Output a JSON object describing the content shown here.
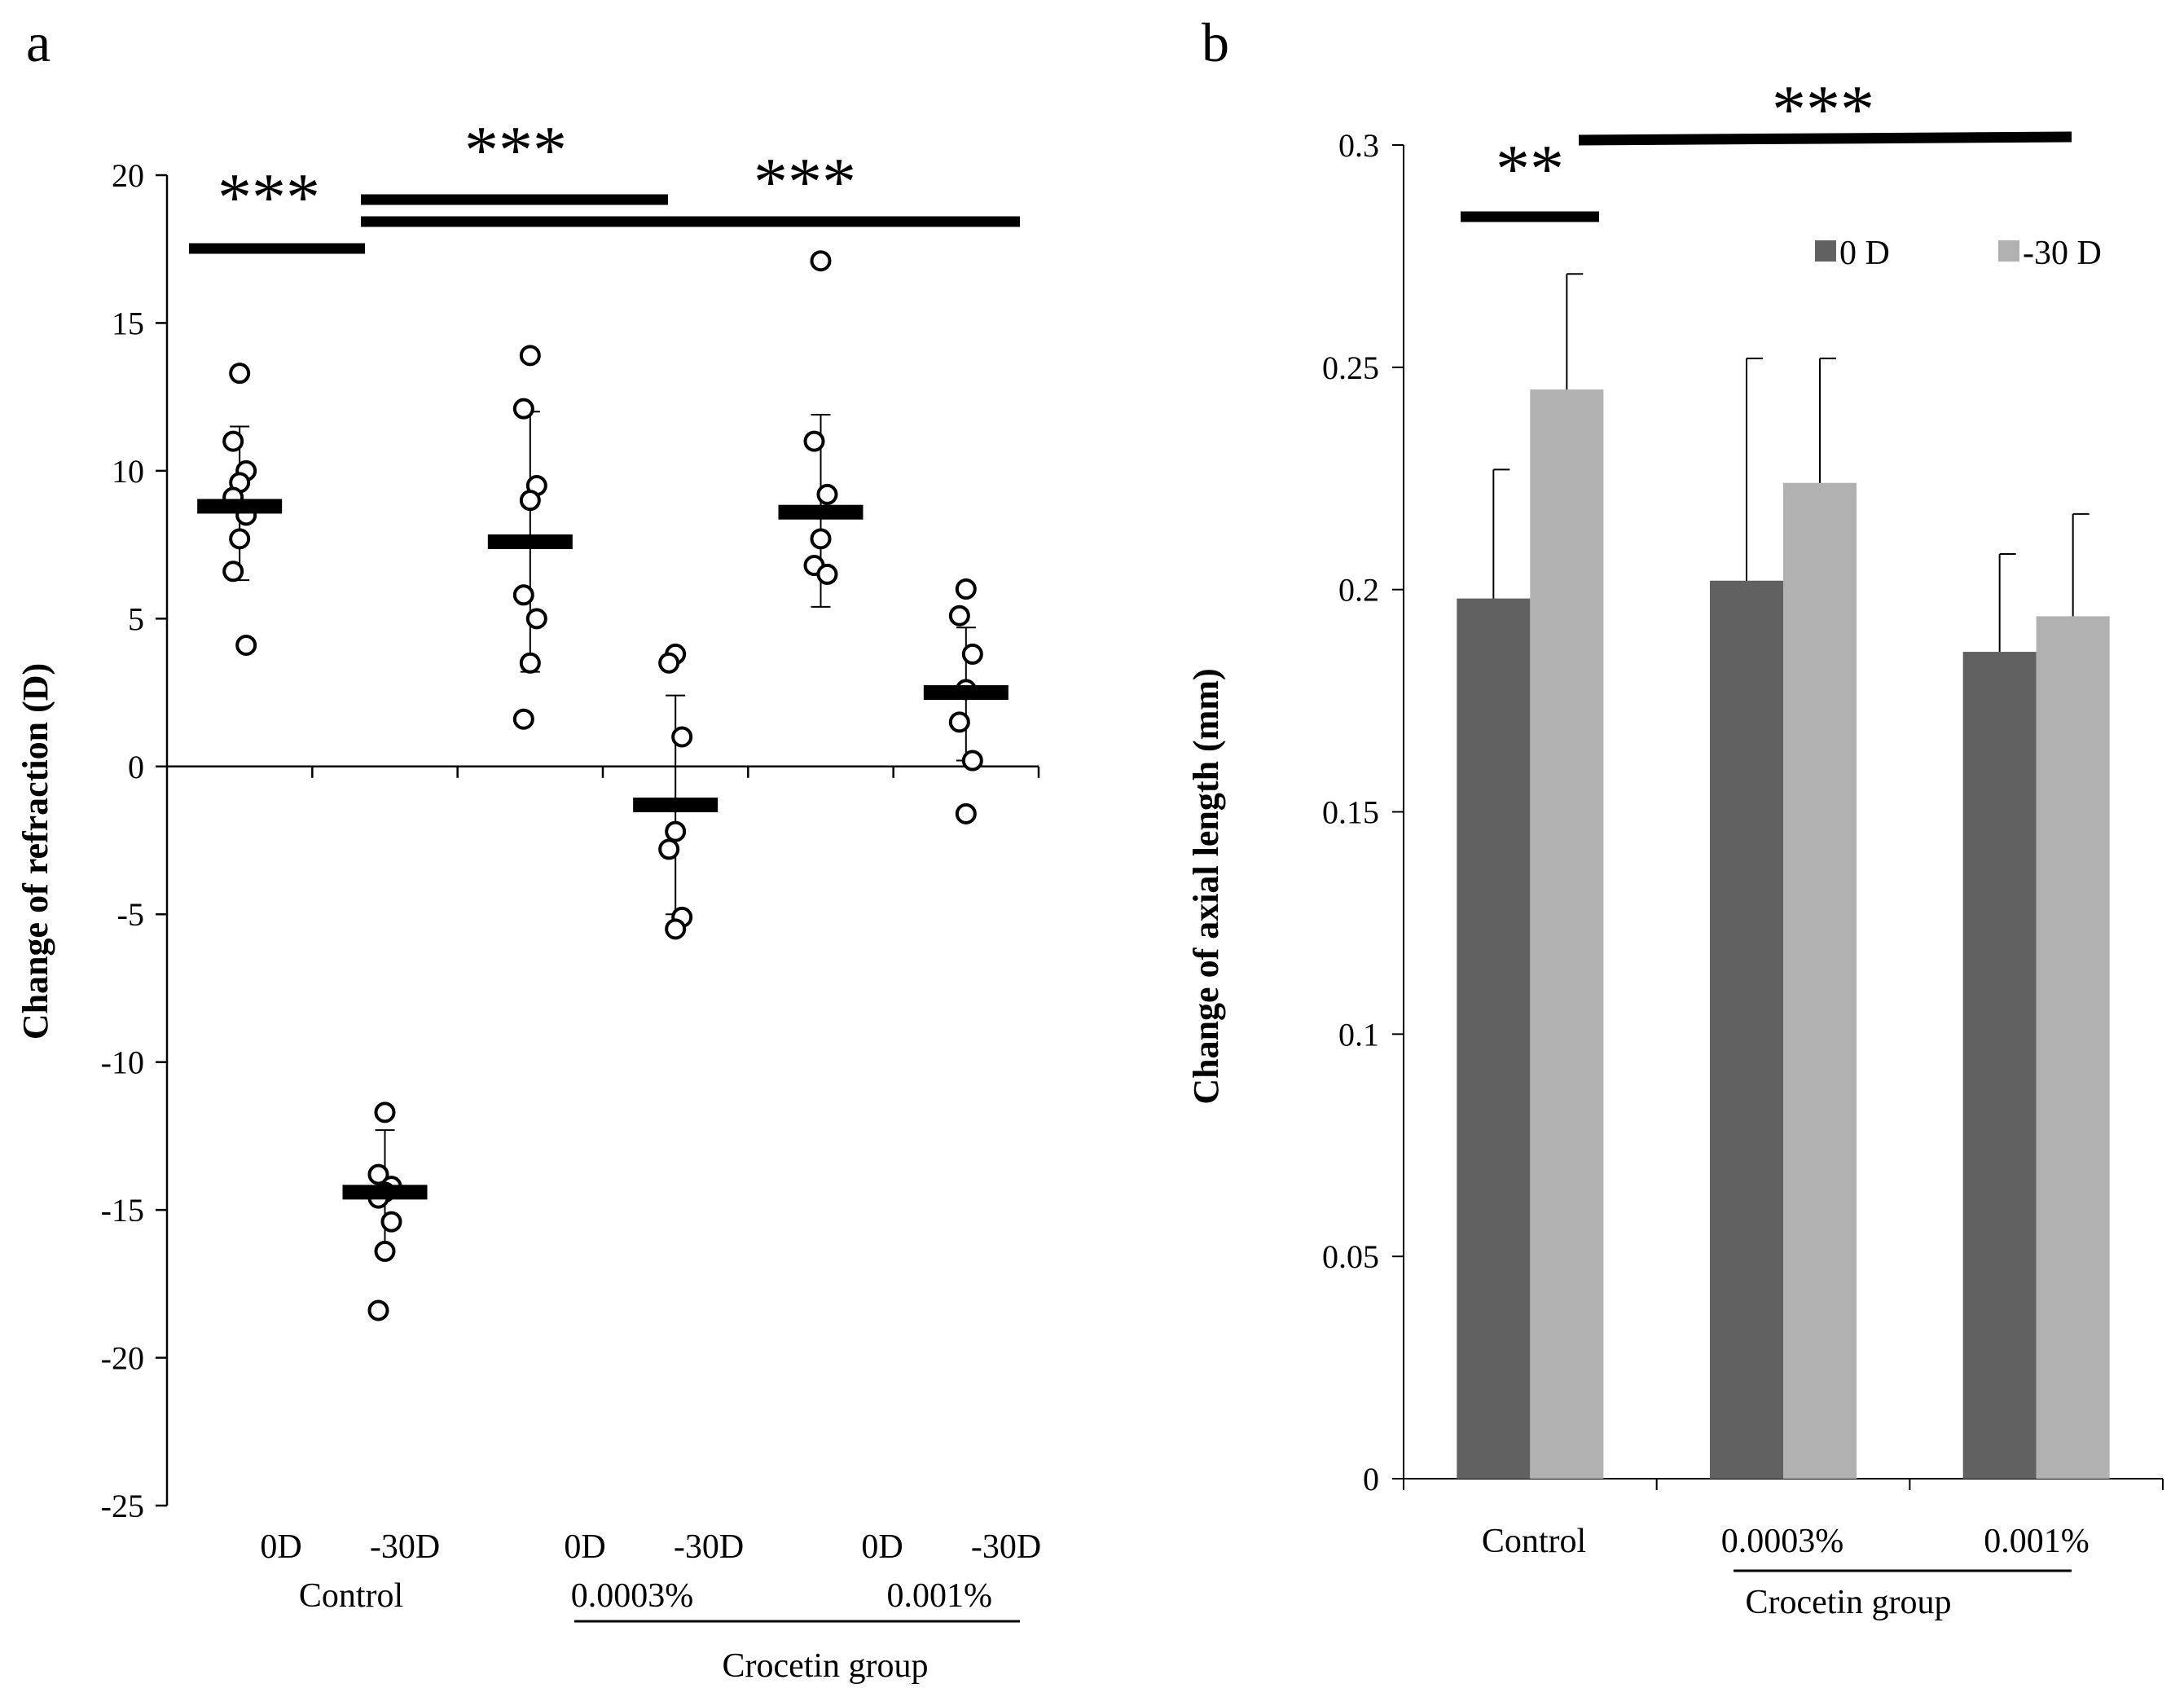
{
  "panels": {
    "a": "a",
    "b": "b"
  },
  "colors": {
    "dark_bar": "#616161",
    "light_bar": "#b1b1b1",
    "ink": "#000000"
  },
  "chart_data": [
    {
      "type": "scatter",
      "panel": "a",
      "ylabel": "Change of refraction (D)",
      "ylim": [
        -25,
        20
      ],
      "yticks": [
        20,
        15,
        10,
        5,
        0,
        -5,
        -10,
        -15,
        -20,
        -25
      ],
      "ytick_labels": [
        "20",
        "15",
        "10",
        "5",
        "0",
        "-5",
        "-10",
        "-15",
        "-20",
        "-25"
      ],
      "categories": [
        "0D",
        "-30D",
        "0D",
        "-30D",
        "0D",
        "-30D"
      ],
      "group_labels": [
        "Control",
        "0.0003%",
        "0.001%"
      ],
      "bracket_label": "Crocetin group",
      "groups": [
        {
          "name": "Control 0D",
          "points": [
            13.3,
            11.0,
            10.0,
            9.6,
            9.1,
            8.5,
            7.7,
            6.6,
            4.1
          ],
          "mean": 8.8,
          "err_high": 11.5,
          "err_low": 6.3
        },
        {
          "name": "Control -30D",
          "points": [
            -11.7,
            -13.8,
            -14.2,
            -14.4,
            -14.6,
            -15.4,
            -16.4,
            -18.4
          ],
          "mean": -14.4,
          "err_high": -12.3,
          "err_low": -16.5
        },
        {
          "name": "0.0003% 0D",
          "points": [
            13.9,
            12.1,
            9.5,
            9.0,
            5.8,
            5.0,
            3.5,
            1.6
          ],
          "mean": 7.6,
          "err_high": 12.0,
          "err_low": 3.2
        },
        {
          "name": "0.0003% -30D",
          "points": [
            3.8,
            3.5,
            1.0,
            -2.2,
            -2.8,
            -5.1,
            -5.5
          ],
          "mean": -1.3,
          "err_high": 2.4,
          "err_low": -5.0
        },
        {
          "name": "0.001% 0D",
          "points": [
            17.1,
            11.0,
            9.2,
            7.7,
            6.8,
            6.5
          ],
          "mean": 8.6,
          "err_high": 11.9,
          "err_low": 5.4
        },
        {
          "name": "0.001% -30D",
          "points": [
            6.0,
            5.1,
            3.8,
            2.6,
            1.5,
            0.2,
            -1.6
          ],
          "mean": 2.5,
          "err_high": 4.7,
          "err_low": 0.2
        }
      ],
      "significance": [
        {
          "label": "***",
          "from": 0,
          "to": 1
        },
        {
          "label": "***",
          "from": 1,
          "to": 3
        },
        {
          "label": "***",
          "from": 1,
          "to": 5
        }
      ]
    },
    {
      "type": "bar",
      "panel": "b",
      "ylabel": "Change of axial length (mm)",
      "ylim": [
        0,
        0.3
      ],
      "yticks": [
        0.3,
        0.25,
        0.2,
        0.15,
        0.1,
        0.05,
        0
      ],
      "ytick_labels": [
        "0.3",
        "0.25",
        "0.2",
        "0.15",
        "0.1",
        "0.05",
        "0"
      ],
      "categories": [
        "Control",
        "0.0003%",
        "0.001%"
      ],
      "bracket_label": "Crocetin group",
      "series": [
        {
          "name": "0 D",
          "values": [
            0.198,
            0.202,
            0.186
          ],
          "errors": [
            0.029,
            0.05,
            0.022
          ]
        },
        {
          "name": "-30 D",
          "values": [
            0.245,
            0.224,
            0.194
          ],
          "errors": [
            0.026,
            0.028,
            0.023
          ]
        }
      ],
      "legend": [
        "0 D",
        "-30 D"
      ],
      "legend_position": "top-right",
      "significance": [
        {
          "label": "**",
          "from_bar": "Control 0 D",
          "to_bar": "Control -30 D"
        },
        {
          "label": "***",
          "from_bar": "Control -30 D",
          "to_bar": "0.001% -30 D"
        }
      ]
    }
  ]
}
